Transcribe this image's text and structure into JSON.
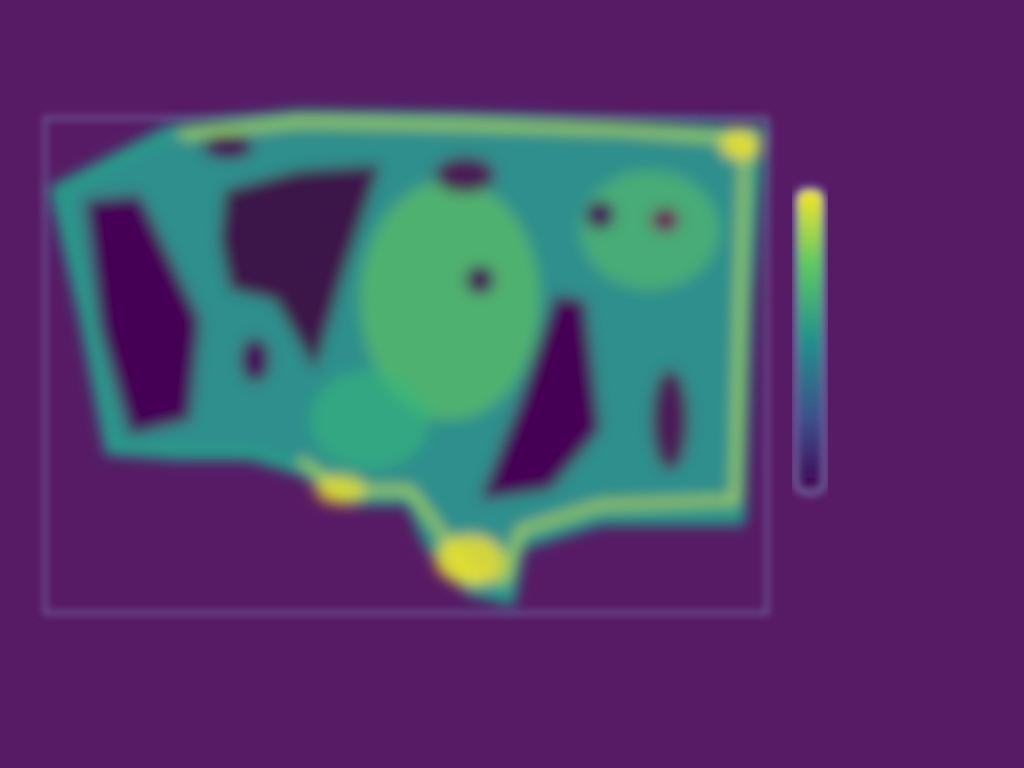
{
  "chart_data": {
    "type": "heatmap",
    "title": "",
    "xlabel": "",
    "ylabel": "",
    "colormap": "viridis",
    "colors": {
      "background": "#571a64",
      "frame": "#6d5d9c",
      "low": "#440154",
      "mid": "#21918c",
      "high": "#fde725"
    },
    "xticks": [
      "",
      "",
      "",
      "",
      "",
      ""
    ],
    "yticks": [
      "",
      "",
      ""
    ],
    "colorbar": {
      "ticks": [
        "",
        "",
        "",
        "",
        ""
      ]
    },
    "grid": false,
    "legend": "none"
  }
}
